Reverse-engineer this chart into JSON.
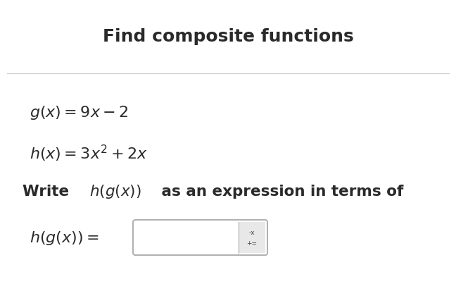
{
  "title": "Find composite functions",
  "title_fontsize": 18,
  "title_fontweight": "bold",
  "bg_color": "#ffffff",
  "text_color": "#2a2a2a",
  "line_color": "#cccccc",
  "eq1_latex": "$g(x) = 9x - 2$",
  "eq2_latex": "$h(x) = 3x^2 + 2x$",
  "answer_label_latex": "$h(g(x)) =$",
  "eq_fontsize": 16,
  "instr_fontsize": 15.5,
  "answer_fontsize": 16,
  "icon_text_line1": "-x",
  "icon_text_line2": "+="
}
